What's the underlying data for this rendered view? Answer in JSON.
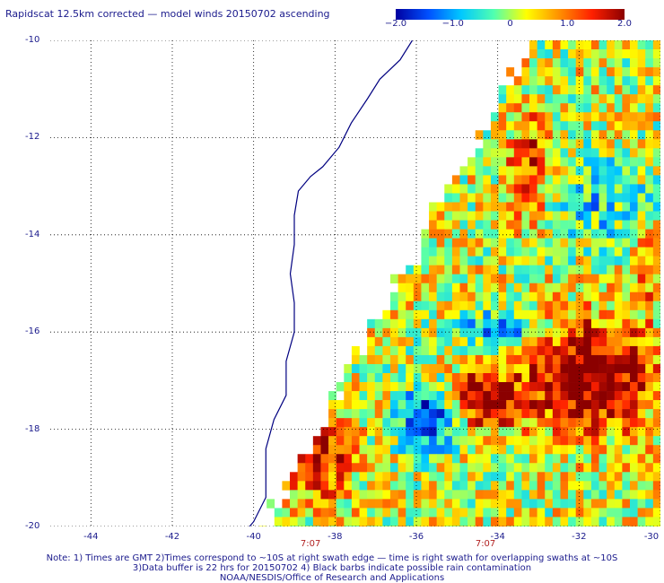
{
  "title": "Rapidscat 12.5km corrected — model winds 20150702 ascending",
  "colorbar": {
    "ticks": [
      "−2.0",
      "−1.0",
      "0",
      "1.0",
      "2.0"
    ],
    "tick_values": [
      -2.0,
      -1.0,
      0,
      1.0,
      2.0
    ],
    "range": [
      -2.0,
      2.0
    ],
    "colors": [
      "#0000a0",
      "#0050ff",
      "#00c8ff",
      "#50ffb0",
      "#ffff00",
      "#ff9000",
      "#ff2000",
      "#8b0000"
    ]
  },
  "axes": {
    "lon_ticks": [
      -44,
      -42,
      -40,
      -38,
      -36,
      -34,
      -32,
      -30
    ],
    "lat_ticks": [
      -10,
      -12,
      -14,
      -16,
      -18,
      -20
    ],
    "lon_range": [
      -45,
      -30
    ],
    "lat_range": [
      -20,
      -10
    ]
  },
  "time_labels": [
    {
      "lon": -38.6,
      "text": "7:07"
    },
    {
      "lon": -34.3,
      "text": "7:07"
    }
  ],
  "notes": [
    "Note: 1) Times are GMT 2)Times correspond to ~10S at right swath edge — time is right swath for overlapping swaths at ~10S",
    "3)Data buffer is 22 hrs for 20150702 4) Black barbs indicate possible rain contamination",
    "NOAA/NESDIS/Office of Research and Applications"
  ],
  "map_colors": {
    "coast": "#000080",
    "grid": "#000000",
    "missing": "#ffffff"
  }
}
